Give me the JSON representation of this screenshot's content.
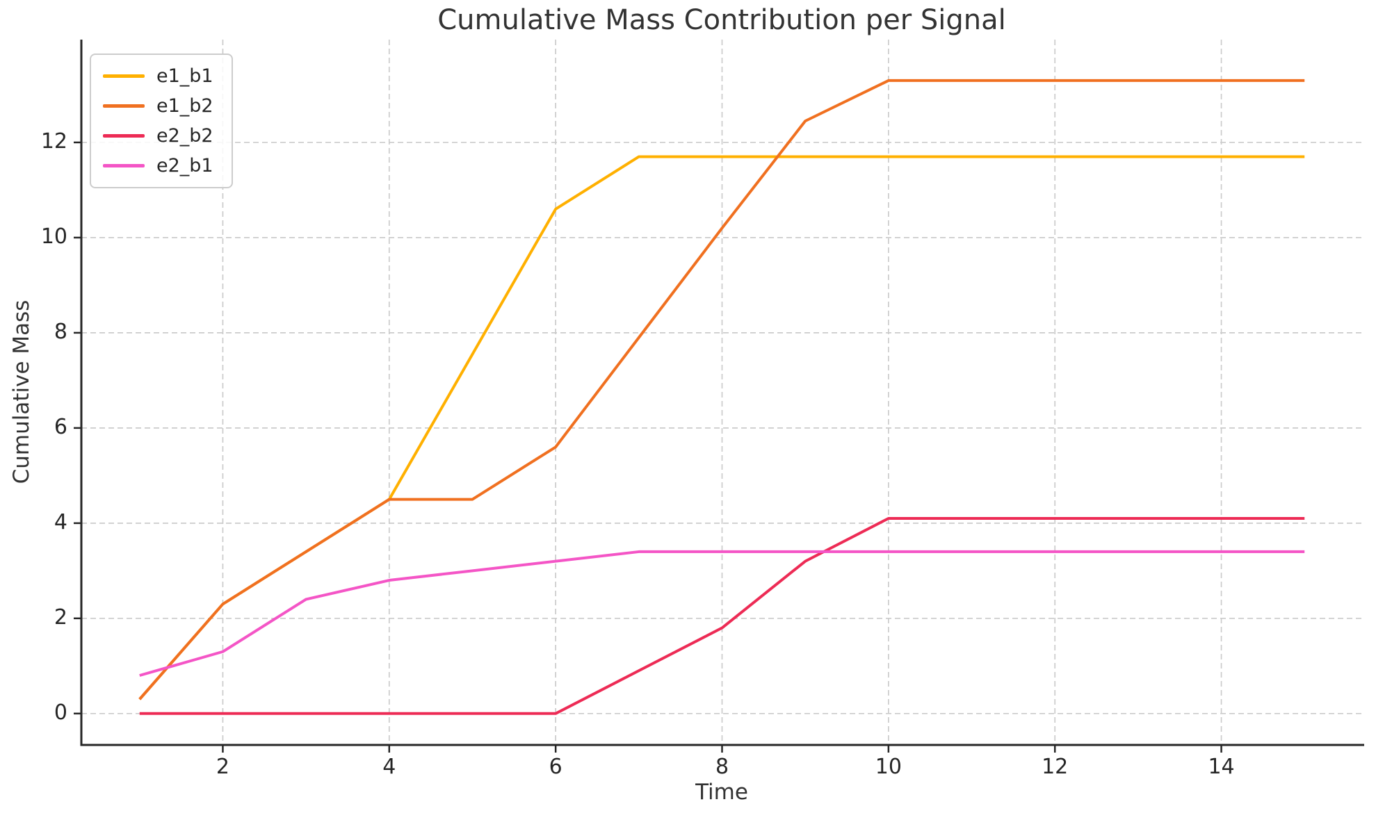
{
  "figure": {
    "title": "Cumulative Mass Contribution per Signal"
  },
  "chart_data": {
    "type": "line",
    "title": "Cumulative Mass Contribution per Signal",
    "xlabel": "Time",
    "ylabel": "Cumulative Mass",
    "x": [
      1,
      2,
      3,
      4,
      5,
      6,
      7,
      8,
      9,
      10,
      11,
      12,
      13,
      14,
      15
    ],
    "series": [
      {
        "name": "e1_b1",
        "color": "#FFB000",
        "values": [
          0.3,
          2.3,
          3.4,
          4.5,
          7.55,
          10.6,
          11.7,
          11.7,
          11.7,
          11.7,
          11.7,
          11.7,
          11.7,
          11.7,
          11.7
        ]
      },
      {
        "name": "e1_b2",
        "color": "#F07020",
        "values": [
          0.3,
          2.3,
          3.4,
          4.5,
          4.5,
          5.6,
          7.9,
          10.2,
          12.45,
          13.3,
          13.3,
          13.3,
          13.3,
          13.3,
          13.3
        ]
      },
      {
        "name": "e2_b2",
        "color": "#ED2B55",
        "values": [
          0,
          0,
          0,
          0,
          0,
          0,
          0.9,
          1.8,
          3.2,
          4.1,
          4.1,
          4.1,
          4.1,
          4.1,
          4.1
        ]
      },
      {
        "name": "e2_b1",
        "color": "#F455C6",
        "values": [
          0.8,
          1.3,
          2.4,
          2.8,
          3.0,
          3.2,
          3.4,
          3.4,
          3.4,
          3.4,
          3.4,
          3.4,
          3.4,
          3.4,
          3.4
        ]
      }
    ],
    "xticks": [
      2,
      4,
      6,
      8,
      10,
      12,
      14
    ],
    "yticks": [
      0,
      2,
      4,
      6,
      8,
      10,
      12
    ],
    "xlim": [
      0.3,
      15.7
    ],
    "ylim": [
      -0.66,
      14.16
    ],
    "grid": true,
    "grid_color": "#CBCBCB",
    "axis_color": "#262626",
    "text_color": "#262626",
    "line_width": 4,
    "legend_position": "upper left"
  }
}
